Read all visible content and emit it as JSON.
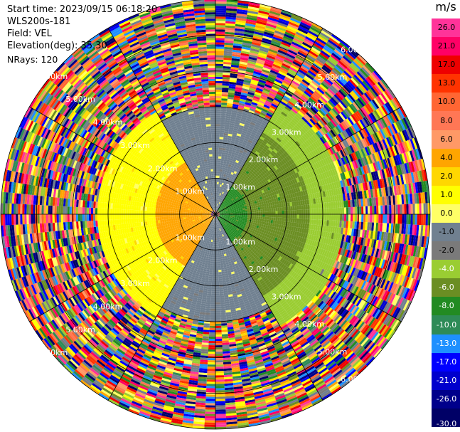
{
  "info": {
    "start_time": "Start time: 2023/09/15 06:18:20",
    "instrument": "WLS200s-181",
    "field": "Field: VEL",
    "elevation": "Elevation(deg): 35.30",
    "nrays": "NRays: 120"
  },
  "chart_data": {
    "type": "heatmap",
    "projection": "polar-ppi",
    "field": "VEL",
    "units": "m/s",
    "n_rays": 120,
    "max_range_km": 6.0,
    "range_rings_km": [
      1,
      2,
      3,
      4,
      5,
      6
    ],
    "ring_labels": [
      "1.00km",
      "2.00km",
      "3.00km",
      "4.00km",
      "5.00km",
      "6.00km"
    ],
    "colorbar": {
      "unit": "m/s",
      "range": [
        -30,
        30
      ],
      "ticks": [
        "26.0",
        "21.0",
        "17.0",
        "13.0",
        "10.0",
        "8.0",
        "6.0",
        "4.0",
        "2.0",
        "1.0",
        "0.0",
        "-1.0",
        "-2.0",
        "-4.0",
        "-6.0",
        "-8.0",
        "-10.0",
        "-13.0",
        "-17.0",
        "-21.0",
        "-26.0",
        "-30.0"
      ],
      "bins": [
        {
          "lo": 26,
          "hi": 30,
          "color": "#ff3399"
        },
        {
          "lo": 21,
          "hi": 26,
          "color": "#ff0066"
        },
        {
          "lo": 17,
          "hi": 21,
          "color": "#ee0000"
        },
        {
          "lo": 13,
          "hi": 17,
          "color": "#ff3300"
        },
        {
          "lo": 10,
          "hi": 13,
          "color": "#ff6633"
        },
        {
          "lo": 8,
          "hi": 10,
          "color": "#ff7755"
        },
        {
          "lo": 6,
          "hi": 8,
          "color": "#ff9966"
        },
        {
          "lo": 4,
          "hi": 6,
          "color": "#ffa500"
        },
        {
          "lo": 2,
          "hi": 4,
          "color": "#ffd700"
        },
        {
          "lo": 1,
          "hi": 2,
          "color": "#ffff00"
        },
        {
          "lo": 0,
          "hi": 1,
          "color": "#ffff66"
        },
        {
          "lo": -1,
          "hi": 0,
          "color": "#708090"
        },
        {
          "lo": -2,
          "hi": -1,
          "color": "#7a7a7a"
        },
        {
          "lo": -4,
          "hi": -2,
          "color": "#9acd32"
        },
        {
          "lo": -6,
          "hi": -4,
          "color": "#6b8e23"
        },
        {
          "lo": -8,
          "hi": -6,
          "color": "#228b22"
        },
        {
          "lo": -10,
          "hi": -8,
          "color": "#2e8b57"
        },
        {
          "lo": -13,
          "hi": -10,
          "color": "#1e90ff"
        },
        {
          "lo": -17,
          "hi": -13,
          "color": "#0000ff"
        },
        {
          "lo": -21,
          "hi": -17,
          "color": "#0000cd"
        },
        {
          "lo": -26,
          "hi": -21,
          "color": "#00008b"
        },
        {
          "lo": -30,
          "hi": -26,
          "color": "#000066"
        }
      ]
    },
    "sectors": [
      {
        "name": "west",
        "az_from": 180,
        "az_to": 360,
        "value_near": 4.5,
        "value_far": 1.5
      },
      {
        "name": "north",
        "az_from": 330,
        "az_to": 30,
        "value": -0.5
      },
      {
        "name": "south",
        "az_from": 150,
        "az_to": 210,
        "value": -0.5
      },
      {
        "name": "east",
        "az_from": 30,
        "az_to": 150,
        "value_near": -7,
        "value_far": -3
      }
    ]
  }
}
